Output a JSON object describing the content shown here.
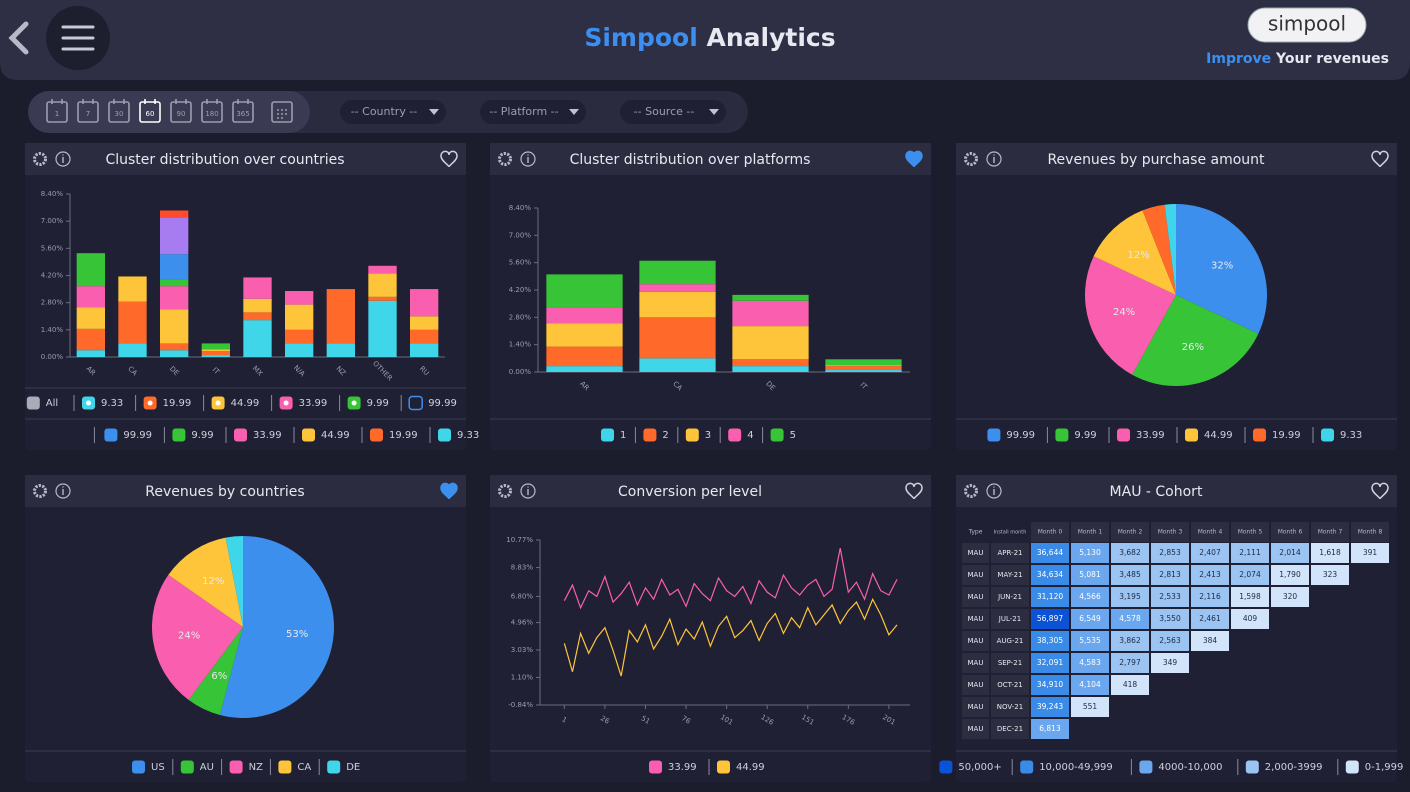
{
  "header": {
    "title_accent": "Simpool",
    "title": "Analytics",
    "logo": "simpool",
    "tagline_accent": "Improve",
    "tagline": "Your revenues"
  },
  "toolbar": {
    "periods": [
      "1",
      "7",
      "30",
      "60",
      "90",
      "180",
      "365"
    ],
    "selected_period": 3,
    "filters": [
      "-- Country --",
      "-- Platform --",
      "-- Source --"
    ]
  },
  "panels": [
    {
      "title": "Cluster distribution over countries",
      "favorite": false,
      "chart": {
        "type": "stacked_bar",
        "filter_all": "All",
        "categories": [
          "AR",
          "CA",
          "DE",
          "IT",
          "MX",
          "N/A",
          "NZ",
          "OTHER",
          "RU"
        ],
        "series": [
          {
            "name": "9.33",
            "color": "#3fd6ea",
            "values": [
              0.35,
              0.7,
              0.35,
              0.1,
              1.9,
              0.7,
              0.7,
              2.9,
              0.7
            ]
          },
          {
            "name": "19.99",
            "color": "#ff6a2b",
            "values": [
              1.1,
              2.15,
              0.35,
              0.2,
              0.4,
              0.7,
              2.8,
              0.2,
              0.7
            ]
          },
          {
            "name": "44.99",
            "color": "#ffc53a",
            "values": [
              1.1,
              1.3,
              1.75,
              0.1,
              0.7,
              1.3,
              0,
              1.2,
              0.7
            ]
          },
          {
            "name": "33.99",
            "color": "#f95fae",
            "values": [
              1.1,
              0,
              1.2,
              0,
              1.1,
              0.7,
              0,
              0.4,
              1.4
            ]
          },
          {
            "name": "9.99",
            "color": "#38c437",
            "values": [
              1.7,
              0,
              0.35,
              0.3,
              0,
              0,
              0,
              0,
              0
            ]
          },
          {
            "name": "99.99",
            "color": "#3d8fee",
            "values": [
              0,
              0,
              1.3,
              0,
              0,
              0,
              0,
              0,
              0
            ]
          },
          {
            "color": "#a77cf0",
            "values": [
              0,
              0,
              1.9,
              0,
              0,
              0,
              0,
              0,
              0
            ]
          },
          {
            "color": "#ff4a2e",
            "values": [
              0,
              0,
              0.35,
              0,
              0,
              0,
              0,
              0,
              0
            ]
          }
        ],
        "ylim": [
          0,
          8.4
        ],
        "yticks": [
          {
            "value": 0,
            "label": "0.00%"
          },
          {
            "value": 1.4,
            "label": "1.40%"
          },
          {
            "value": 2.8,
            "label": "2.80%"
          },
          {
            "value": 4.2,
            "label": "4.20%"
          },
          {
            "value": 5.6,
            "label": "5.60%"
          },
          {
            "value": 7,
            "label": "7.00%"
          },
          {
            "value": 8.4,
            "label": "8.40%"
          }
        ]
      }
    },
    {
      "title": "Cluster distribution over platforms",
      "favorite": true,
      "chart": {
        "type": "stacked_bar",
        "categories": [
          "AR",
          "CA",
          "DE",
          "IT"
        ],
        "series": [
          {
            "name": "1",
            "color": "#3fd6ea",
            "values": [
              0.3,
              0.7,
              0.3,
              0.1
            ]
          },
          {
            "name": "2",
            "color": "#ff6a2b",
            "values": [
              1.0,
              2.1,
              0.35,
              0.2
            ]
          },
          {
            "name": "3",
            "color": "#ffc53a",
            "values": [
              1.2,
              1.3,
              1.7,
              0.05
            ]
          },
          {
            "name": "4",
            "color": "#f95fae",
            "values": [
              0.8,
              0.4,
              1.3,
              0
            ]
          },
          {
            "name": "5",
            "color": "#38c437",
            "values": [
              1.7,
              1.2,
              0.3,
              0.3
            ]
          }
        ],
        "ylim": [
          0,
          8.4
        ],
        "yticks": [
          {
            "value": 0,
            "label": "0.00%"
          },
          {
            "value": 1.4,
            "label": "1.40%"
          },
          {
            "value": 2.8,
            "label": "2.80%"
          },
          {
            "value": 4.2,
            "label": "4.20%"
          },
          {
            "value": 5.6,
            "label": "5.60%"
          },
          {
            "value": 7,
            "label": "7.00%"
          },
          {
            "value": 8.4,
            "label": "8.40%"
          }
        ]
      }
    },
    {
      "title": "Revenues by purchase amount",
      "favorite": false,
      "chart": {
        "type": "pie",
        "categories": [
          "99.99",
          "9.99",
          "33.99",
          "44.99",
          "19.99",
          "9.33"
        ],
        "values": [
          32,
          26,
          24,
          12,
          4,
          2
        ],
        "value_labels": [
          "32%",
          "26%",
          "24%",
          "12%",
          null,
          null
        ],
        "colors": [
          "#3d8fee",
          "#38c437",
          "#f95fae",
          "#ffc53a",
          "#ff6a2b",
          "#3fd6ea"
        ]
      }
    },
    {
      "title": "Revenues by countries",
      "favorite": true,
      "chart": {
        "type": "pie",
        "categories": [
          "US",
          "AU",
          "NZ",
          "CA",
          "DE"
        ],
        "values": [
          53,
          6,
          24,
          12,
          3
        ],
        "value_labels": [
          "53%",
          "6%",
          "24%",
          "12%",
          null
        ],
        "colors": [
          "#3d8fee",
          "#38c437",
          "#f95fae",
          "#ffc53a",
          "#3fd6ea"
        ]
      }
    },
    {
      "title": "Conversion per level",
      "favorite": false,
      "chart": {
        "type": "line",
        "x": [
          1,
          6,
          11,
          16,
          21,
          26,
          31,
          36,
          41,
          46,
          51,
          56,
          61,
          66,
          71,
          76,
          81,
          86,
          91,
          96,
          101,
          106,
          111,
          116,
          121,
          126,
          131,
          136,
          141,
          146,
          151,
          156,
          161,
          166,
          171,
          176,
          181,
          186,
          191,
          196,
          201,
          206
        ],
        "series": [
          {
            "name": "33.99",
            "color": "#f95fae",
            "values": [
              6.5,
              7.6,
              6.0,
              7.2,
              6.8,
              8.2,
              6.4,
              7.0,
              7.8,
              6.2,
              7.4,
              6.6,
              8.0,
              6.9,
              7.3,
              6.1,
              7.7,
              7.0,
              6.5,
              8.1,
              7.2,
              6.8,
              7.5,
              6.3,
              7.9,
              7.1,
              6.7,
              8.3,
              7.4,
              6.9,
              7.6,
              8.0,
              6.8,
              7.3,
              10.2,
              7.1,
              7.8,
              6.6,
              8.4,
              7.2,
              6.9,
              8.0
            ]
          },
          {
            "name": "44.99",
            "color": "#ffc53a",
            "values": [
              3.5,
              1.5,
              4.2,
              2.8,
              3.9,
              4.6,
              3.0,
              1.2,
              4.4,
              3.6,
              4.8,
              3.1,
              4.0,
              5.2,
              3.4,
              4.5,
              3.8,
              5.0,
              3.3,
              4.7,
              5.4,
              3.9,
              4.4,
              5.1,
              3.7,
              4.9,
              5.6,
              4.2,
              5.3,
              4.6,
              6.0,
              4.8,
              5.5,
              6.2,
              4.9,
              5.8,
              6.4,
              5.2,
              6.6,
              5.5,
              4.1,
              4.8
            ]
          }
        ],
        "xlim": [
          -14,
          214
        ],
        "xticks": [
          1,
          26,
          51,
          76,
          101,
          126,
          151,
          176,
          201
        ],
        "ylim": [
          -0.84,
          10.77
        ],
        "yticks": [
          {
            "value": -0.84,
            "label": "-0.84%"
          },
          {
            "value": 1.1,
            "label": "1.10%"
          },
          {
            "value": 3.03,
            "label": "3.03%"
          },
          {
            "value": 4.96,
            "label": "4.96%"
          },
          {
            "value": 6.8,
            "label": "6.80%"
          },
          {
            "value": 8.83,
            "label": "8.83%"
          },
          {
            "value": 10.77,
            "label": "10.77%"
          }
        ]
      }
    },
    {
      "title": "MAU - Cohort",
      "favorite": false,
      "chart": {
        "type": "cohort_table",
        "columns": [
          "Type",
          "Install month",
          "Month 0",
          "Month 1",
          "Month 2",
          "Month 3",
          "Month 4",
          "Month 5",
          "Month 6",
          "Month 7",
          "Month 8"
        ],
        "rows": [
          {
            "type": "MAU",
            "month": "APR-21",
            "values": [
              "36,644",
              "5,130",
              "3,682",
              "2,853",
              "2,407",
              "2,111",
              "2,014",
              "1,618",
              "391"
            ]
          },
          {
            "type": "MAU",
            "month": "MAY-21",
            "values": [
              "34,634",
              "5,081",
              "3,485",
              "2,813",
              "2,413",
              "2,074",
              "1,790",
              "323"
            ]
          },
          {
            "type": "MAU",
            "month": "JUN-21",
            "values": [
              "31,120",
              "4,566",
              "3,195",
              "2,533",
              "2,116",
              "1,598",
              "320"
            ]
          },
          {
            "type": "MAU",
            "month": "JUL-21",
            "values": [
              "56,897",
              "6,549",
              "4,578",
              "3,550",
              "2,461",
              "409"
            ]
          },
          {
            "type": "MAU",
            "month": "AUG-21",
            "values": [
              "38,305",
              "5,535",
              "3,862",
              "2,563",
              "384"
            ]
          },
          {
            "type": "MAU",
            "month": "SEP-21",
            "values": [
              "32,091",
              "4,583",
              "2,797",
              "349"
            ]
          },
          {
            "type": "MAU",
            "month": "OCT-21",
            "values": [
              "34,910",
              "4,104",
              "418"
            ]
          },
          {
            "type": "MAU",
            "month": "NOV-21",
            "values": [
              "39,243",
              "551"
            ]
          },
          {
            "type": "MAU",
            "month": "DEC-21",
            "values": [
              "6,813"
            ]
          }
        ],
        "scale": [
          {
            "label": "50,000+",
            "min": 50000,
            "color": "#0b52d6"
          },
          {
            "label": "10,000-49,999",
            "min": 10000,
            "color": "#3a8be8"
          },
          {
            "label": "4000-10,000",
            "min": 4000,
            "color": "#6aa7ee"
          },
          {
            "label": "2,000-3999",
            "min": 2000,
            "color": "#9cc4f2"
          },
          {
            "label": "0-1,999",
            "min": 0,
            "color": "#d2e4fa"
          }
        ]
      }
    }
  ]
}
